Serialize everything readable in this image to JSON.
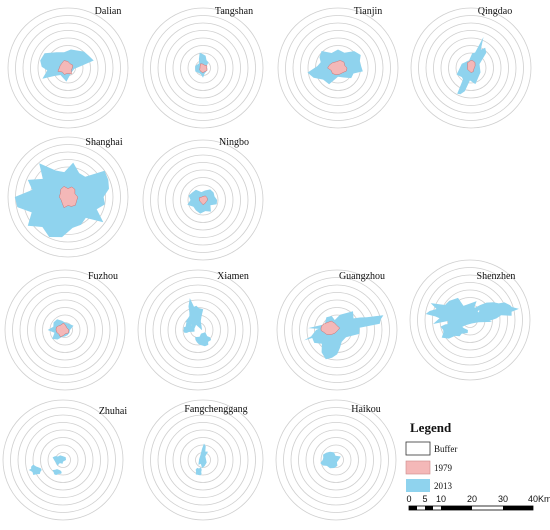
{
  "cities": [
    {
      "name": "Dalian"
    },
    {
      "name": "Tangshan"
    },
    {
      "name": "Tianjin"
    },
    {
      "name": "Qingdao"
    },
    {
      "name": "Shanghai"
    },
    {
      "name": "Ningbo"
    },
    {
      "name": "Fuzhou"
    },
    {
      "name": "Xiamen"
    },
    {
      "name": "Guangzhou"
    },
    {
      "name": "Shenzhen"
    },
    {
      "name": "Zhuhai"
    },
    {
      "name": "Fangchenggang"
    },
    {
      "name": "Haikou"
    }
  ],
  "legend": {
    "title": "Legend",
    "items": [
      {
        "label": "Buffer",
        "color": "#ffffff"
      },
      {
        "label": "1979",
        "color": "#f4b8b8"
      },
      {
        "label": "2013",
        "color": "#8fd3ee"
      }
    ]
  },
  "scale_bar": {
    "ticks": [
      "0",
      "5",
      "10",
      "20",
      "30",
      "40"
    ],
    "unit": "Km"
  },
  "colors": {
    "ring": "#cfcfcf",
    "urban_1979": "#f4b8b8",
    "urban_2013": "#8fd3ee",
    "outline_1979": "#d07070"
  }
}
